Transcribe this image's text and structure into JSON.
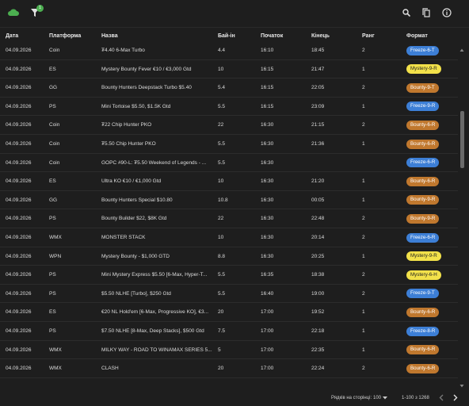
{
  "toolbar": {
    "filter_badge": "1"
  },
  "table": {
    "columns": [
      "Дата",
      "Платформа",
      "Назва",
      "Бай-ін",
      "Початок",
      "Кінець",
      "Ранг",
      "Формат"
    ],
    "rows": [
      {
        "date": "04.09.2026",
        "platform": "Coin",
        "name": "₮4.40 6-Max Turbo",
        "buyin": "4.4",
        "start": "16:10",
        "end": "18:45",
        "rank": "2",
        "format": {
          "label": "Freeze-6-T",
          "color": "#3d7fd6",
          "text_color": "#ffffff"
        }
      },
      {
        "date": "04.09.2026",
        "platform": "ES",
        "name": "Mystery Bounty Fever €10 / €3,000 Gtd",
        "buyin": "10",
        "start": "16:15",
        "end": "21:47",
        "rank": "1",
        "format": {
          "label": "Mystery-9-R",
          "color": "#f2e14a",
          "text_color": "#222222"
        }
      },
      {
        "date": "04.09.2026",
        "platform": "GG",
        "name": "Bounty Hunters Deepstack Turbo $5.40",
        "buyin": "5.4",
        "start": "16:15",
        "end": "22:05",
        "rank": "2",
        "format": {
          "label": "Bounty-9-T",
          "color": "#c0782e",
          "text_color": "#ffffff"
        }
      },
      {
        "date": "04.09.2026",
        "platform": "PS",
        "name": "Mini Tortoise $5.50, $1.5K Gtd",
        "buyin": "5.5",
        "start": "16:15",
        "end": "23:09",
        "rank": "1",
        "format": {
          "label": "Freeze-9-R",
          "color": "#3d7fd6",
          "text_color": "#ffffff"
        }
      },
      {
        "date": "04.09.2026",
        "platform": "Coin",
        "name": "₮22 Chip Hunter PKO",
        "buyin": "22",
        "start": "16:30",
        "end": "21:15",
        "rank": "2",
        "format": {
          "label": "Bounty-6-R",
          "color": "#c0782e",
          "text_color": "#ffffff"
        }
      },
      {
        "date": "04.09.2026",
        "platform": "Coin",
        "name": "₮5.50 Chip Hunter PKO",
        "buyin": "5.5",
        "start": "16:30",
        "end": "21:36",
        "rank": "1",
        "format": {
          "label": "Bounty-6-R",
          "color": "#c0782e",
          "text_color": "#ffffff"
        }
      },
      {
        "date": "04.09.2026",
        "platform": "Coin",
        "name": "GOPC #90-L: ₮5.50 Weekend of Legends - ...",
        "buyin": "5.5",
        "start": "16:30",
        "format": {
          "label": "Freeze-6-R",
          "color": "#3d7fd6",
          "text_color": "#ffffff"
        }
      },
      {
        "date": "04.09.2026",
        "platform": "ES",
        "name": "Ultra KO €10 / €1,000 Gtd",
        "buyin": "10",
        "start": "16:30",
        "end": "21:20",
        "rank": "1",
        "format": {
          "label": "Bounty-6-R",
          "color": "#c0782e",
          "text_color": "#ffffff"
        }
      },
      {
        "date": "04.09.2026",
        "platform": "GG",
        "name": "Bounty Hunters Special $10.80",
        "buyin": "10.8",
        "start": "16:30",
        "end": "00:05",
        "rank": "1",
        "format": {
          "label": "Bounty-9-R",
          "color": "#c0782e",
          "text_color": "#ffffff"
        }
      },
      {
        "date": "04.09.2026",
        "platform": "PS",
        "name": "Bounty Builder $22, $8K Gtd",
        "buyin": "22",
        "start": "16:30",
        "end": "22:48",
        "rank": "2",
        "format": {
          "label": "Bounty-9-R",
          "color": "#c0782e",
          "text_color": "#ffffff"
        }
      },
      {
        "date": "04.09.2026",
        "platform": "WMX",
        "name": "MONSTER STACK",
        "buyin": "10",
        "start": "16:30",
        "end": "20:14",
        "rank": "2",
        "format": {
          "label": "Freeze-6-R",
          "color": "#3d7fd6",
          "text_color": "#ffffff"
        }
      },
      {
        "date": "04.09.2026",
        "platform": "WPN",
        "name": "Mystery Bounty - $1,000 GTD",
        "buyin": "8.8",
        "start": "16:30",
        "end": "20:25",
        "rank": "1",
        "format": {
          "label": "Mystery-9-R",
          "color": "#f2e14a",
          "text_color": "#222222"
        }
      },
      {
        "date": "04.09.2026",
        "platform": "PS",
        "name": "Mini Mystery Express $5.50 [6-Max, Hyper-T...",
        "buyin": "5.5",
        "start": "16:35",
        "end": "18:38",
        "rank": "2",
        "format": {
          "label": "Mystery-6-H",
          "color": "#f2e14a",
          "text_color": "#222222"
        }
      },
      {
        "date": "04.09.2026",
        "platform": "PS",
        "name": "$5.50 NLHE [Turbo], $250 Gtd",
        "buyin": "5.5",
        "start": "16:40",
        "end": "19:00",
        "rank": "2",
        "format": {
          "label": "Freeze-9-T",
          "color": "#3d7fd6",
          "text_color": "#ffffff"
        }
      },
      {
        "date": "04.09.2026",
        "platform": "ES",
        "name": "€20 NL Hold'em [6-Max, Progressive KO], €3...",
        "buyin": "20",
        "start": "17:00",
        "end": "19:52",
        "rank": "1",
        "format": {
          "label": "Bounty-6-R",
          "color": "#c0782e",
          "text_color": "#ffffff"
        }
      },
      {
        "date": "04.09.2026",
        "platform": "PS",
        "name": "$7.50 NLHE [8-Max, Deep Stacks], $500 Gtd",
        "buyin": "7.5",
        "start": "17:00",
        "end": "22:18",
        "rank": "1",
        "format": {
          "label": "Freeze-8-R",
          "color": "#3d7fd6",
          "text_color": "#ffffff"
        }
      },
      {
        "date": "04.09.2026",
        "platform": "WMX",
        "name": "MILKY WAY - ROAD TO WINAMAX SERIES 5...",
        "buyin": "5",
        "start": "17:00",
        "end": "22:35",
        "rank": "1",
        "format": {
          "label": "Bounty-6-R",
          "color": "#c0782e",
          "text_color": "#ffffff"
        }
      },
      {
        "date": "04.09.2026",
        "platform": "WMX",
        "name": "CLASH",
        "buyin": "20",
        "start": "17:00",
        "end": "22:24",
        "rank": "2",
        "format": {
          "label": "Bounty-6-R",
          "color": "#c0782e",
          "text_color": "#ffffff"
        }
      }
    ]
  },
  "footer": {
    "rows_per_page_label": "Рядків на сторінці:",
    "rows_per_page": "100",
    "range": "1-100 з 1268"
  }
}
